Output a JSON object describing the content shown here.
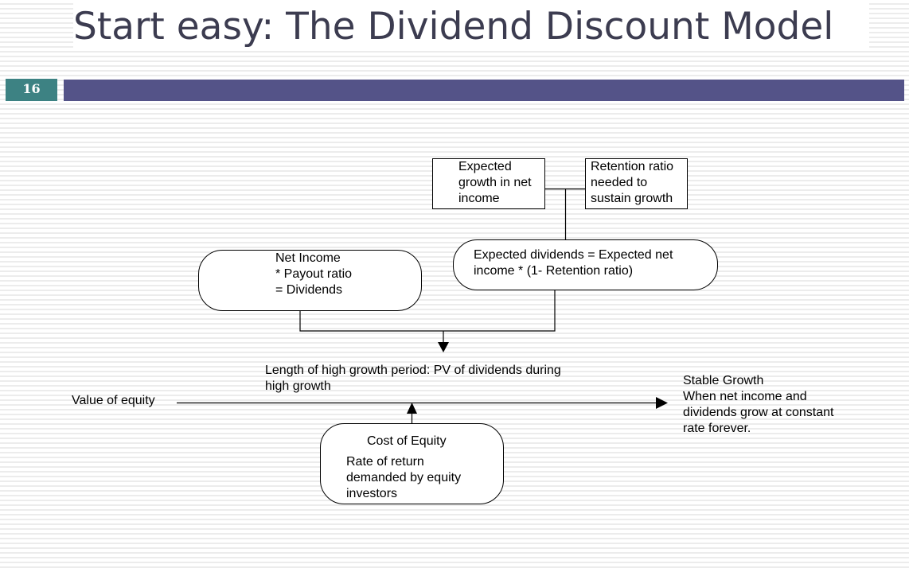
{
  "slide": {
    "title": "Start easy: The Dividend Discount Model",
    "number": "16"
  },
  "diagram": {
    "growth_box": "Expected\ngrowth in net\nincome",
    "retention_box": "Retention ratio\nneeded to\nsustain growth",
    "expected_dividends_box": "Expected dividends = Expected net\nincome * (1- Retention ratio)",
    "net_income_box": "Net Income\n* Payout ratio\n= Dividends",
    "high_growth_label": "Length of high growth period: PV of dividends during\nhigh growth",
    "value_of_equity_label": "Value of equity",
    "stable_growth_label": "Stable Growth\nWhen net income and\ndividends grow at constant\nrate forever.",
    "cost_of_equity_title": "Cost of Equity",
    "cost_of_equity_body": "Rate of return\ndemanded by equity\ninvestors"
  }
}
